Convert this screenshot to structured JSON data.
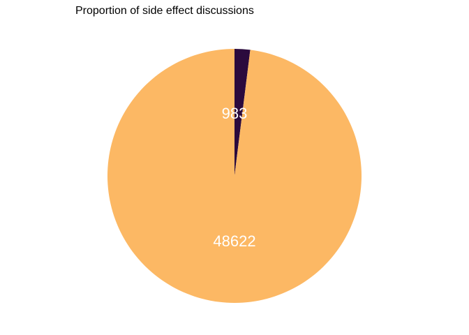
{
  "chart_data": {
    "type": "pie",
    "title": "Proportion of side effect discussions",
    "categories": [
      "",
      ""
    ],
    "values": [
      983,
      48622
    ],
    "labels": [
      "983",
      "48622"
    ],
    "colors": [
      "#2b0a3d",
      "#fcb864"
    ],
    "label_color": "#ffffff",
    "start": "12 o'clock",
    "direction": "clockwise",
    "legend": "none"
  }
}
